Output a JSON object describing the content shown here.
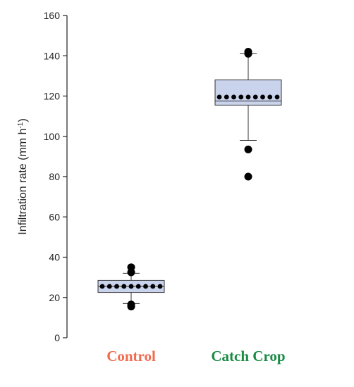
{
  "chart_data": {
    "type": "box",
    "ylabel": "Infiltration rate (mm h",
    "ylabel_sup": "-1",
    "ylabel_close": ")",
    "ylim": [
      0,
      160
    ],
    "yticks": [
      0,
      20,
      40,
      60,
      80,
      100,
      120,
      140,
      160
    ],
    "grid": false,
    "categories": [
      {
        "name": "Control",
        "color": "#f26b4f",
        "whisker_low": 17,
        "q1": 22.5,
        "median": 25.5,
        "q3": 28.5,
        "whisker_high": 32,
        "mean_points": [
          25.5,
          25.5,
          25.5,
          25.5,
          25.5,
          25.5,
          25.5,
          25.5,
          25.5
        ],
        "outliers": [
          35,
          32.5,
          15.5,
          16.5
        ]
      },
      {
        "name": "Catch Crop",
        "color": "#1a8a45",
        "whisker_low": 98,
        "q1": 115.5,
        "median": 117.5,
        "q3": 128,
        "whisker_high": 141,
        "mean_points": [
          119.5,
          119.5,
          119.5,
          119.5,
          119.5,
          119.5,
          119.5,
          119.5,
          119.5
        ],
        "outliers": [
          142,
          141,
          93.5,
          80
        ]
      }
    ],
    "box_fill": "#c9d3ec",
    "box_stroke": "#333333"
  }
}
